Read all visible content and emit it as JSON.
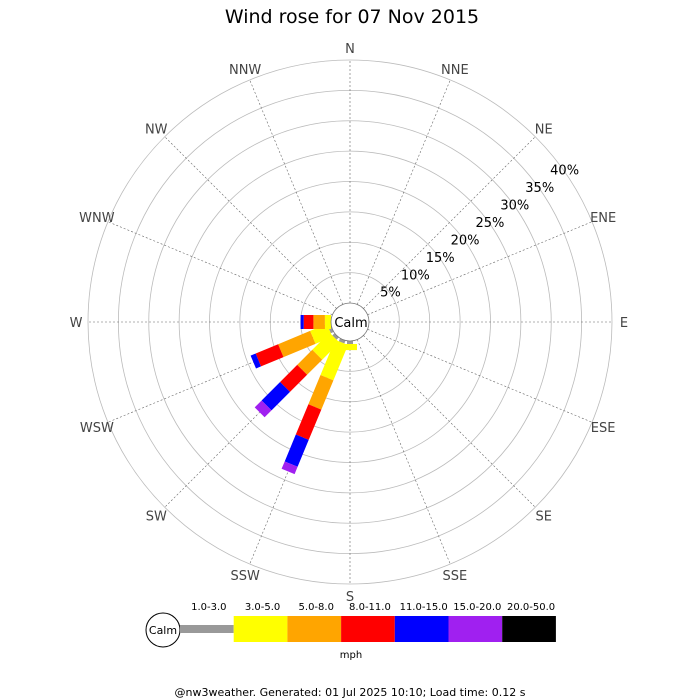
{
  "chart_data": {
    "type": "wind-rose",
    "title": "Wind rose for 07 Nov 2015",
    "directions": [
      "N",
      "NNE",
      "NE",
      "ENE",
      "E",
      "ESE",
      "SE",
      "SSE",
      "S",
      "SSW",
      "SW",
      "WSW",
      "W",
      "WNW",
      "NW",
      "NNW"
    ],
    "ring_labels": [
      "5%",
      "10%",
      "15%",
      "20%",
      "25%",
      "30%",
      "35%",
      "40%"
    ],
    "rlim": [
      0,
      40
    ],
    "calm_label": "Calm",
    "units": "mph",
    "speed_bins": [
      {
        "label": "1.0-3.0",
        "color": "#999999"
      },
      {
        "label": "3.0-5.0",
        "color": "#ffff00"
      },
      {
        "label": "5.0-8.0",
        "color": "#ffa500"
      },
      {
        "label": "8.0-11.0",
        "color": "#ff0000"
      },
      {
        "label": "11.0-15.0",
        "color": "#0000ff"
      },
      {
        "label": "15.0-20.0",
        "color": "#a020f0"
      },
      {
        "label": "20.0-50.0",
        "color": "#000000"
      }
    ],
    "series": [
      {
        "direction": "S",
        "values": [
          0.5,
          1.0,
          0,
          0,
          0,
          0,
          0
        ]
      },
      {
        "direction": "SSW",
        "values": [
          0.5,
          6.3,
          5.2,
          5.4,
          4.8,
          1.3,
          0
        ]
      },
      {
        "direction": "SW",
        "values": [
          0.5,
          4.0,
          3.5,
          4.0,
          4.3,
          1.6,
          0
        ]
      },
      {
        "direction": "WSW",
        "values": [
          0.5,
          3.0,
          5.7,
          4.0,
          0.9,
          0,
          0
        ]
      },
      {
        "direction": "W",
        "values": [
          0,
          1.0,
          1.9,
          1.6,
          0.5,
          0,
          0
        ]
      }
    ]
  },
  "footer": "@nw3weather. Generated: 01 Jul 2025 10:10; Load time: 0.12 s"
}
